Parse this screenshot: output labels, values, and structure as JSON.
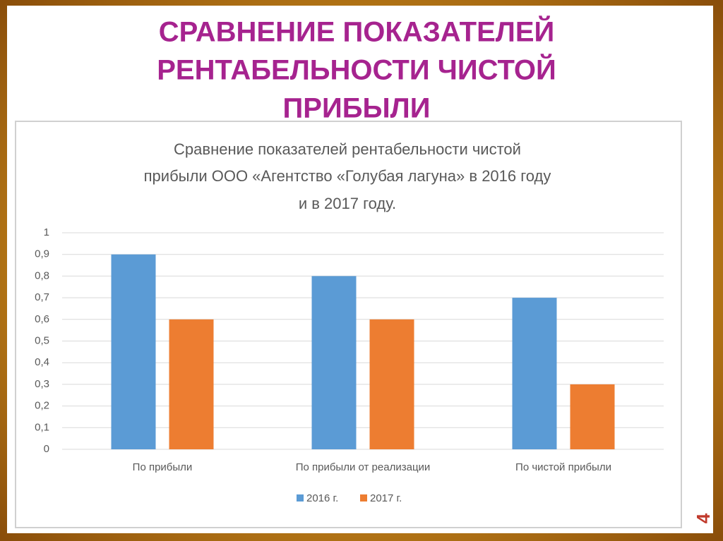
{
  "slide": {
    "title": [
      "СРАВНЕНИЕ ПОКАЗАТЕЛЕЙ",
      "РЕНТАБЕЛЬНОСТИ ЧИСТОЙ",
      "ПРИБЫЛИ"
    ],
    "page_number": "4"
  },
  "chart_data": {
    "type": "bar",
    "title": [
      "Сравнение показателей рентабельности чистой",
      "прибыли ООО «Агентство «Голубая лагуна» в 2016 году",
      "и в 2017 году."
    ],
    "categories": [
      "По прибыли",
      "По прибыли от реализации",
      "По чистой прибыли"
    ],
    "series": [
      {
        "name": "2016 г.",
        "color": "#5b9bd5",
        "values": [
          0.9,
          0.8,
          0.7
        ]
      },
      {
        "name": "2017 г.",
        "color": "#ed7d31",
        "values": [
          0.6,
          0.6,
          0.3
        ]
      }
    ],
    "ylim": [
      0,
      1
    ],
    "yticks": [
      0,
      {
        "value": 0.1,
        "label": "0,1"
      },
      {
        "value": 0.2,
        "label": "0,2"
      },
      {
        "value": 0.3,
        "label": "0,3"
      },
      {
        "value": 0.4,
        "label": "0,4"
      },
      {
        "value": 0.5,
        "label": "0,5"
      },
      {
        "value": 0.6,
        "label": "0,6"
      },
      {
        "value": 0.7,
        "label": "0,7"
      },
      {
        "value": 0.8,
        "label": "0,8"
      },
      {
        "value": 0.9,
        "label": "0,9"
      },
      1
    ],
    "grid": true,
    "legend": "bottom"
  }
}
